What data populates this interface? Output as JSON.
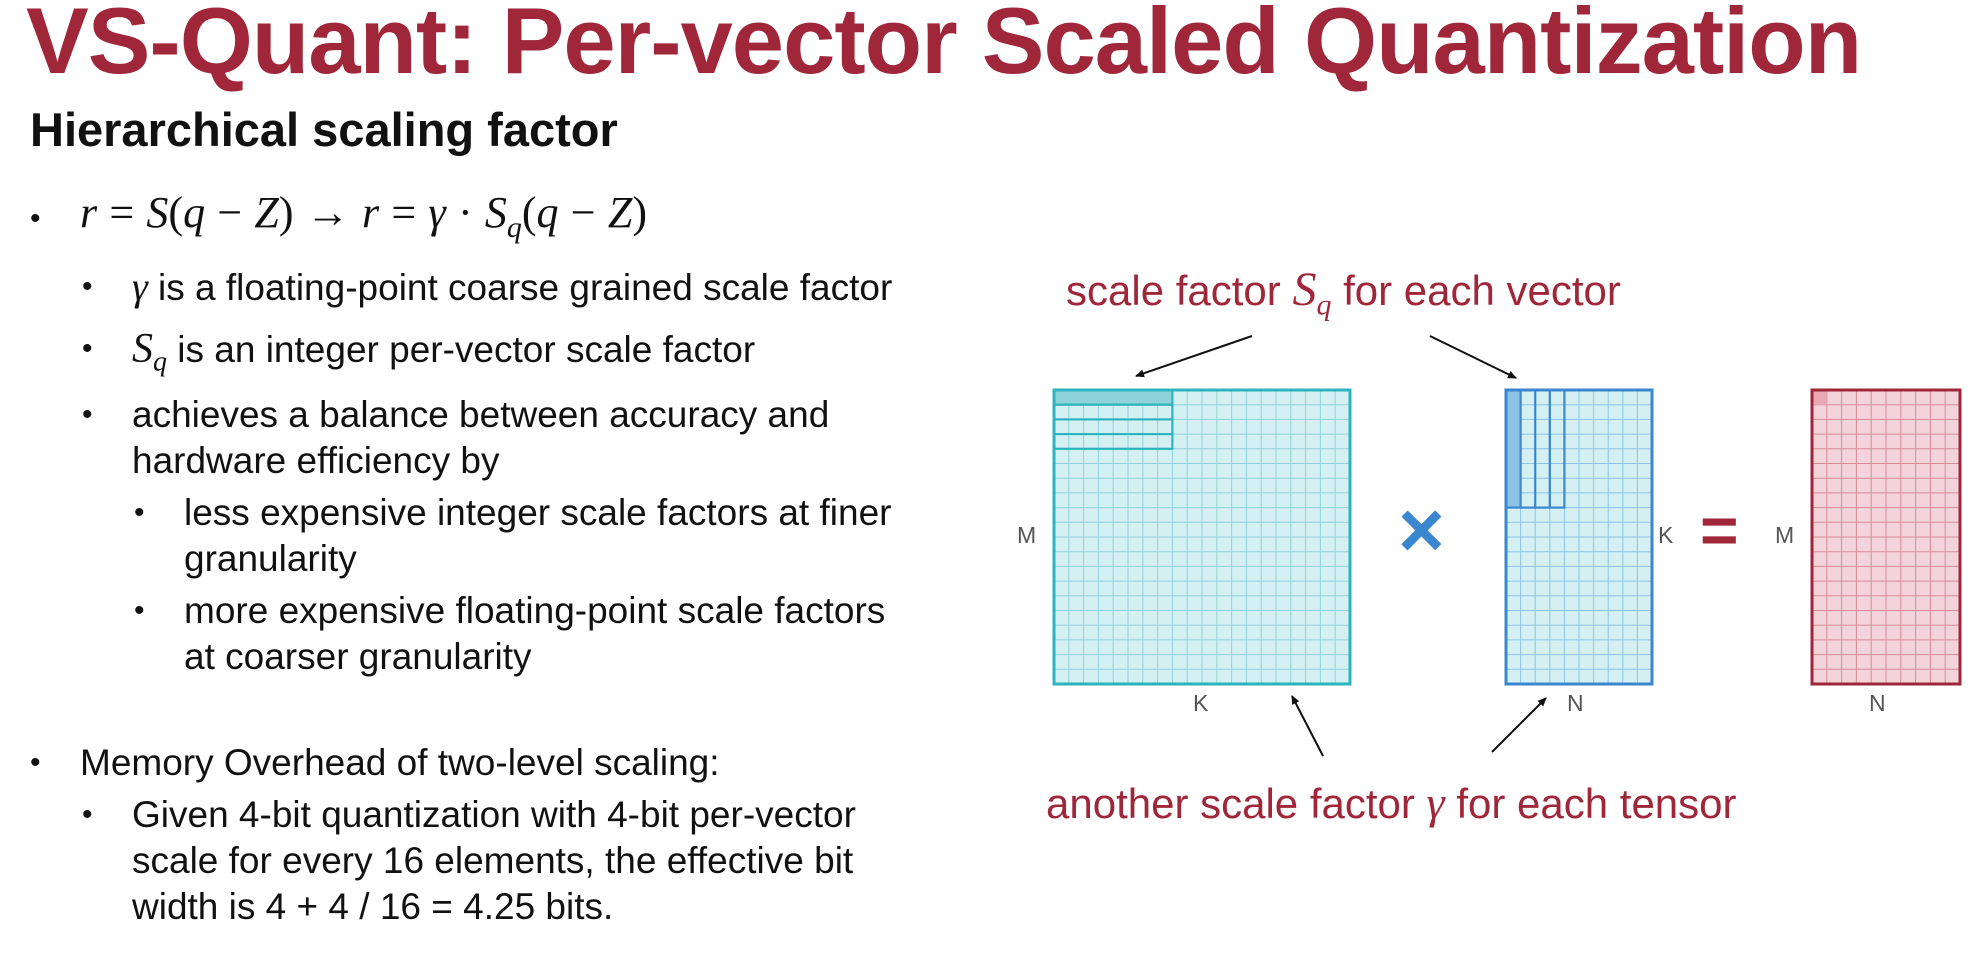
{
  "slide": {
    "title": "VS-Quant: Per-vector Scaled Quantization",
    "subtitle": "Hierarchical scaling factor",
    "colors": {
      "accent": "#a0263a",
      "teal": "#2cb3c0",
      "blue": "#3a86cf",
      "light_teal": "#d5f0f2"
    }
  },
  "bullets": {
    "formula": {
      "lhs_r": "r",
      "eq": "=",
      "S": "S",
      "paren_open": "(",
      "q": "q",
      "minus": "−",
      "Z": "Z",
      "paren_close": ")",
      "arrow": "→",
      "gamma": "γ",
      "dot": "·",
      "sub_q": "q"
    },
    "b1": {
      "sym": "γ",
      "text": " is a floating-point coarse grained scale factor"
    },
    "b2": {
      "sym": "S",
      "sub": "q",
      "text": " is an integer per-vector scale factor"
    },
    "b3": {
      "line1": "achieves a balance between accuracy and",
      "line2": "hardware efficiency by"
    },
    "b3a": {
      "line1": "less expensive integer scale factors at finer",
      "line2": "granularity"
    },
    "b3b": {
      "line1": "more expensive floating-point scale factors",
      "line2": "at coarser granularity"
    },
    "mem": {
      "text": "Memory Overhead of two-level scaling:"
    },
    "mem_a": {
      "line1": "Given 4-bit quantization with 4-bit per-vector",
      "line2": "scale for every 16 elements, the effective bit",
      "line3": "width is 4 + 4 / 16 = 4.25 bits."
    }
  },
  "diagram": {
    "top_annotation": {
      "pre": "scale factor ",
      "sym": "S",
      "sub": "q",
      "post": " for each vector"
    },
    "bottom_annotation": {
      "pre": "another scale factor ",
      "sym": "γ",
      "post": " for each tensor"
    },
    "matrix_a": {
      "row_label": "M",
      "col_label": "K"
    },
    "matrix_b": {
      "row_label": "K",
      "col_label": "N"
    },
    "matrix_c": {
      "row_label": "M",
      "col_label": "N"
    },
    "times_symbol": "×",
    "equals_symbol": "="
  }
}
